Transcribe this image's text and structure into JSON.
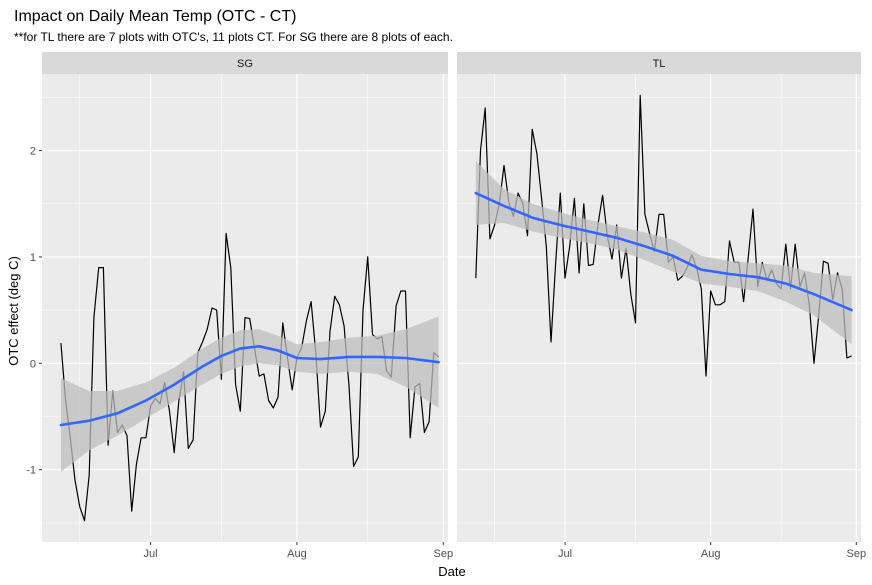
{
  "chart_data": {
    "type": "line",
    "title": "Impact on Daily Mean Temp (OTC - CT)",
    "subtitle": "**for TL there are 7 plots with OTC's, 11 plots CT. For SG there are 8 plots of each.",
    "xlabel": "Date",
    "ylabel": "OTC effect (deg C)",
    "x_ticks": [
      "Jul",
      "Aug",
      "Sep"
    ],
    "y_ticks": [
      "-1",
      "0",
      "1",
      "2"
    ],
    "xlim": [
      "2018-06-08",
      "2018-09-02"
    ],
    "ylim": [
      -1.68,
      2.72
    ],
    "grid": true,
    "colors": {
      "panel_bg": "#ebebeb",
      "strip_bg": "#d9d9d9",
      "grid": "#ffffff",
      "raw_line": "#000000",
      "smooth_line": "#3366ff",
      "ribbon": "#bdbdbd"
    },
    "facets": [
      {
        "label": "SG",
        "raw": {
          "x": [
            "2018-06-12",
            "2018-06-13",
            "2018-06-14",
            "2018-06-15",
            "2018-06-16",
            "2018-06-17",
            "2018-06-18",
            "2018-06-19",
            "2018-06-20",
            "2018-06-21",
            "2018-06-22",
            "2018-06-23",
            "2018-06-24",
            "2018-06-25",
            "2018-06-26",
            "2018-06-27",
            "2018-06-28",
            "2018-06-29",
            "2018-06-30",
            "2018-07-01",
            "2018-07-02",
            "2018-07-03",
            "2018-07-04",
            "2018-07-05",
            "2018-07-06",
            "2018-07-07",
            "2018-07-08",
            "2018-07-09",
            "2018-07-10",
            "2018-07-11",
            "2018-07-12",
            "2018-07-13",
            "2018-07-14",
            "2018-07-15",
            "2018-07-16",
            "2018-07-17",
            "2018-07-18",
            "2018-07-19",
            "2018-07-20",
            "2018-07-21",
            "2018-07-22",
            "2018-07-23",
            "2018-07-24",
            "2018-07-25",
            "2018-07-26",
            "2018-07-27",
            "2018-07-28",
            "2018-07-29",
            "2018-07-30",
            "2018-07-31",
            "2018-08-01",
            "2018-08-02",
            "2018-08-03",
            "2018-08-04",
            "2018-08-05",
            "2018-08-06",
            "2018-08-07",
            "2018-08-08",
            "2018-08-09",
            "2018-08-10",
            "2018-08-11",
            "2018-08-12",
            "2018-08-13",
            "2018-08-14",
            "2018-08-15",
            "2018-08-16",
            "2018-08-17",
            "2018-08-18",
            "2018-08-19",
            "2018-08-20",
            "2018-08-21",
            "2018-08-22",
            "2018-08-23",
            "2018-08-24",
            "2018-08-25",
            "2018-08-26",
            "2018-08-27",
            "2018-08-28",
            "2018-08-29",
            "2018-08-30",
            "2018-08-31"
          ],
          "y": [
            0.19,
            -0.35,
            -0.7,
            -1.1,
            -1.35,
            -1.48,
            -1.05,
            0.43,
            0.9,
            0.9,
            -0.77,
            -0.26,
            -0.65,
            -0.58,
            -0.68,
            -1.39,
            -0.95,
            -0.7,
            -0.7,
            -0.4,
            -0.33,
            -0.38,
            -0.18,
            -0.45,
            -0.84,
            -0.35,
            -0.08,
            -0.8,
            -0.72,
            0.1,
            0.2,
            0.32,
            0.52,
            0.5,
            -0.15,
            1.22,
            0.9,
            -0.2,
            -0.45,
            0.43,
            0.42,
            0.15,
            -0.12,
            -0.1,
            -0.35,
            -0.42,
            -0.32,
            0.38,
            0.05,
            -0.25,
            0.05,
            0.15,
            0.4,
            0.58,
            0.1,
            -0.6,
            -0.45,
            0.3,
            0.63,
            0.55,
            0.35,
            -0.2,
            -0.97,
            -0.88,
            0.5,
            1.0,
            0.27,
            0.23,
            0.25,
            -0.07,
            -0.13,
            0.54,
            0.68,
            0.68,
            -0.7,
            -0.22,
            -0.19,
            -0.65,
            -0.55,
            0.1,
            0.06
          ]
        },
        "smooth": {
          "x": [
            "2018-06-12",
            "2018-06-18",
            "2018-06-24",
            "2018-06-30",
            "2018-07-06",
            "2018-07-12",
            "2018-07-16",
            "2018-07-20",
            "2018-07-24",
            "2018-07-28",
            "2018-08-01",
            "2018-08-06",
            "2018-08-12",
            "2018-08-18",
            "2018-08-24",
            "2018-08-31"
          ],
          "y": [
            -0.58,
            -0.54,
            -0.47,
            -0.35,
            -0.2,
            -0.03,
            0.07,
            0.14,
            0.16,
            0.12,
            0.05,
            0.04,
            0.06,
            0.06,
            0.05,
            0.01
          ],
          "lo": [
            -1.02,
            -0.82,
            -0.68,
            -0.52,
            -0.36,
            -0.2,
            -0.1,
            -0.03,
            0.0,
            -0.02,
            -0.08,
            -0.1,
            -0.08,
            -0.1,
            -0.22,
            -0.42
          ],
          "hi": [
            -0.14,
            -0.26,
            -0.26,
            -0.18,
            -0.04,
            0.14,
            0.24,
            0.31,
            0.32,
            0.26,
            0.18,
            0.2,
            0.24,
            0.26,
            0.32,
            0.44
          ]
        }
      },
      {
        "label": "TL",
        "raw": {
          "x": [
            "2018-06-12",
            "2018-06-13",
            "2018-06-14",
            "2018-06-15",
            "2018-06-16",
            "2018-06-17",
            "2018-06-18",
            "2018-06-19",
            "2018-06-20",
            "2018-06-21",
            "2018-06-22",
            "2018-06-23",
            "2018-06-24",
            "2018-06-25",
            "2018-06-26",
            "2018-06-27",
            "2018-06-28",
            "2018-06-29",
            "2018-06-30",
            "2018-07-01",
            "2018-07-02",
            "2018-07-03",
            "2018-07-04",
            "2018-07-05",
            "2018-07-06",
            "2018-07-07",
            "2018-07-08",
            "2018-07-09",
            "2018-07-10",
            "2018-07-11",
            "2018-07-12",
            "2018-07-13",
            "2018-07-14",
            "2018-07-15",
            "2018-07-16",
            "2018-07-17",
            "2018-07-18",
            "2018-07-19",
            "2018-07-20",
            "2018-07-21",
            "2018-07-22",
            "2018-07-23",
            "2018-07-24",
            "2018-07-25",
            "2018-07-26",
            "2018-07-27",
            "2018-07-28",
            "2018-07-29",
            "2018-07-30",
            "2018-07-31",
            "2018-08-01",
            "2018-08-02",
            "2018-08-03",
            "2018-08-04",
            "2018-08-05",
            "2018-08-06",
            "2018-08-07",
            "2018-08-08",
            "2018-08-09",
            "2018-08-10",
            "2018-08-11",
            "2018-08-12",
            "2018-08-13",
            "2018-08-14",
            "2018-08-15",
            "2018-08-16",
            "2018-08-17",
            "2018-08-18",
            "2018-08-19",
            "2018-08-20",
            "2018-08-21",
            "2018-08-22",
            "2018-08-23",
            "2018-08-24",
            "2018-08-25",
            "2018-08-26",
            "2018-08-27",
            "2018-08-28",
            "2018-08-29",
            "2018-08-30",
            "2018-08-31"
          ],
          "y": [
            0.8,
            2.0,
            2.4,
            1.17,
            1.3,
            1.5,
            1.86,
            1.52,
            1.38,
            1.6,
            1.5,
            1.2,
            2.2,
            1.97,
            1.55,
            1.1,
            0.2,
            0.95,
            1.6,
            0.8,
            1.1,
            1.55,
            0.85,
            1.5,
            0.92,
            0.93,
            1.3,
            1.58,
            1.2,
            0.98,
            1.3,
            0.8,
            1.08,
            0.65,
            0.38,
            2.52,
            1.4,
            1.22,
            1.05,
            1.4,
            1.4,
            0.95,
            1.0,
            0.78,
            0.82,
            0.9,
            1.02,
            0.9,
            0.7,
            -0.12,
            0.68,
            0.55,
            0.55,
            0.58,
            1.15,
            0.95,
            0.95,
            0.58,
            1.0,
            1.45,
            0.72,
            0.95,
            0.78,
            0.88,
            0.75,
            0.7,
            1.12,
            0.7,
            1.12,
            0.72,
            0.85,
            0.55,
            0.0,
            0.45,
            0.96,
            0.94,
            0.6,
            0.85,
            0.7,
            0.05,
            0.07
          ]
        },
        "smooth": {
          "x": [
            "2018-06-12",
            "2018-06-18",
            "2018-06-24",
            "2018-06-30",
            "2018-07-06",
            "2018-07-12",
            "2018-07-18",
            "2018-07-24",
            "2018-07-30",
            "2018-08-05",
            "2018-08-11",
            "2018-08-17",
            "2018-08-23",
            "2018-08-31"
          ],
          "y": [
            1.6,
            1.48,
            1.37,
            1.3,
            1.24,
            1.18,
            1.1,
            1.01,
            0.88,
            0.84,
            0.81,
            0.75,
            0.65,
            0.5
          ],
          "lo": [
            1.3,
            1.32,
            1.24,
            1.18,
            1.13,
            1.07,
            0.97,
            0.86,
            0.75,
            0.72,
            0.68,
            0.58,
            0.45,
            0.18
          ],
          "hi": [
            1.9,
            1.64,
            1.5,
            1.42,
            1.35,
            1.29,
            1.23,
            1.16,
            1.01,
            0.96,
            0.94,
            0.92,
            0.85,
            0.82
          ]
        }
      }
    ]
  }
}
